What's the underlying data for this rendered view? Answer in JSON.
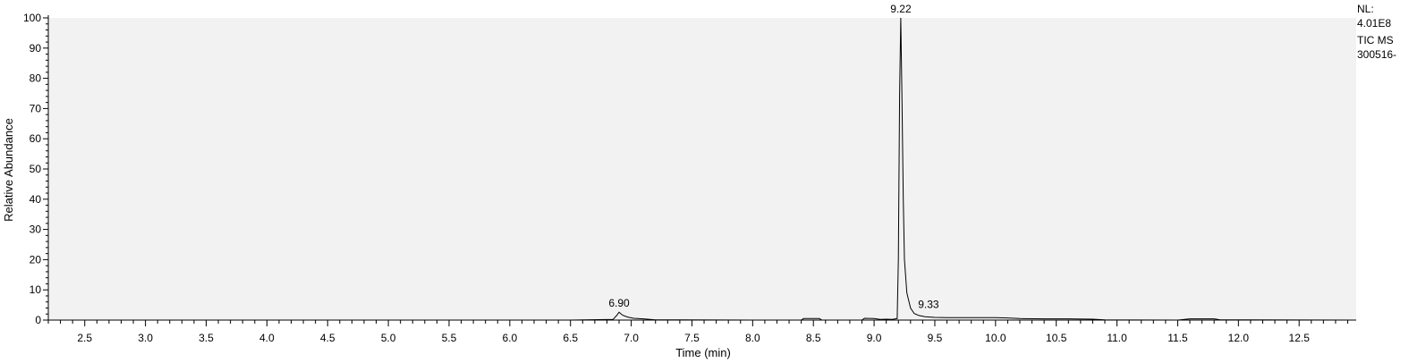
{
  "chart_data": {
    "type": "line",
    "xlabel": "Time (min)",
    "ylabel": "Relative Abundance",
    "xlim": [
      2.2,
      12.97
    ],
    "ylim": [
      0,
      100
    ],
    "x_ticks": [
      2.5,
      3.0,
      3.5,
      4.0,
      4.5,
      5.0,
      5.5,
      6.0,
      6.5,
      7.0,
      7.5,
      8.0,
      8.5,
      9.0,
      9.5,
      10.0,
      10.5,
      11.0,
      11.5,
      12.0,
      12.5
    ],
    "x_tick_labels": [
      "2.5",
      "3.0",
      "3.5",
      "4.0",
      "4.5",
      "5.0",
      "5.5",
      "6.0",
      "6.5",
      "7.0",
      "7.5",
      "8.0",
      "8.5",
      "9.0",
      "9.5",
      "10.0",
      "10.5",
      "11.0",
      "11.5",
      "12.0",
      "12.5"
    ],
    "y_ticks": [
      0,
      10,
      20,
      30,
      40,
      50,
      60,
      70,
      80,
      90,
      100
    ],
    "y_tick_labels": [
      "0",
      "10",
      "20",
      "30",
      "40",
      "50",
      "60",
      "70",
      "80",
      "90",
      "100"
    ],
    "grid": false,
    "series": [
      {
        "points": [
          [
            2.2,
            0
          ],
          [
            6.5,
            0
          ],
          [
            6.85,
            0.2
          ],
          [
            6.88,
            1.5
          ],
          [
            6.9,
            2.6
          ],
          [
            6.93,
            1.6
          ],
          [
            6.97,
            1.0
          ],
          [
            7.02,
            0.6
          ],
          [
            7.1,
            0.4
          ],
          [
            7.2,
            0.1
          ],
          [
            8.0,
            0
          ],
          [
            8.4,
            0
          ],
          [
            8.42,
            0.5
          ],
          [
            8.55,
            0.5
          ],
          [
            8.57,
            0
          ],
          [
            8.9,
            0
          ],
          [
            8.92,
            0.6
          ],
          [
            9.0,
            0.5
          ],
          [
            9.05,
            0.2
          ],
          [
            9.1,
            0.3
          ],
          [
            9.15,
            0.2
          ],
          [
            9.19,
            0.5
          ],
          [
            9.2,
            20
          ],
          [
            9.21,
            75
          ],
          [
            9.22,
            100
          ],
          [
            9.23,
            72
          ],
          [
            9.24,
            40
          ],
          [
            9.25,
            20
          ],
          [
            9.27,
            9
          ],
          [
            9.3,
            4
          ],
          [
            9.33,
            2.2
          ],
          [
            9.37,
            1.5
          ],
          [
            9.42,
            1.1
          ],
          [
            9.5,
            0.9
          ],
          [
            9.6,
            0.8
          ],
          [
            9.8,
            0.8
          ],
          [
            10.0,
            0.8
          ],
          [
            10.1,
            0.7
          ],
          [
            10.2,
            0.5
          ],
          [
            10.4,
            0.4
          ],
          [
            10.6,
            0.4
          ],
          [
            10.8,
            0.3
          ],
          [
            10.9,
            0.1
          ],
          [
            11.5,
            0
          ],
          [
            11.6,
            0.4
          ],
          [
            11.8,
            0.4
          ],
          [
            11.85,
            0.1
          ],
          [
            12.97,
            0
          ]
        ]
      }
    ],
    "peak_labels": [
      {
        "x": 6.9,
        "y": 2.6,
        "text": "6.90"
      },
      {
        "x": 9.22,
        "y": 100,
        "text": "9.22"
      },
      {
        "x": 9.33,
        "y": 2.2,
        "text": "9.33"
      }
    ],
    "colors": {
      "plot_bg": "#f2f2f2",
      "trace": "#000000",
      "axis": "#000000"
    }
  },
  "side_notes": {
    "nl_label": "NL:",
    "nl_value": "4.01E8",
    "scan_type": "TIC  MS",
    "file_name": "300516-"
  }
}
